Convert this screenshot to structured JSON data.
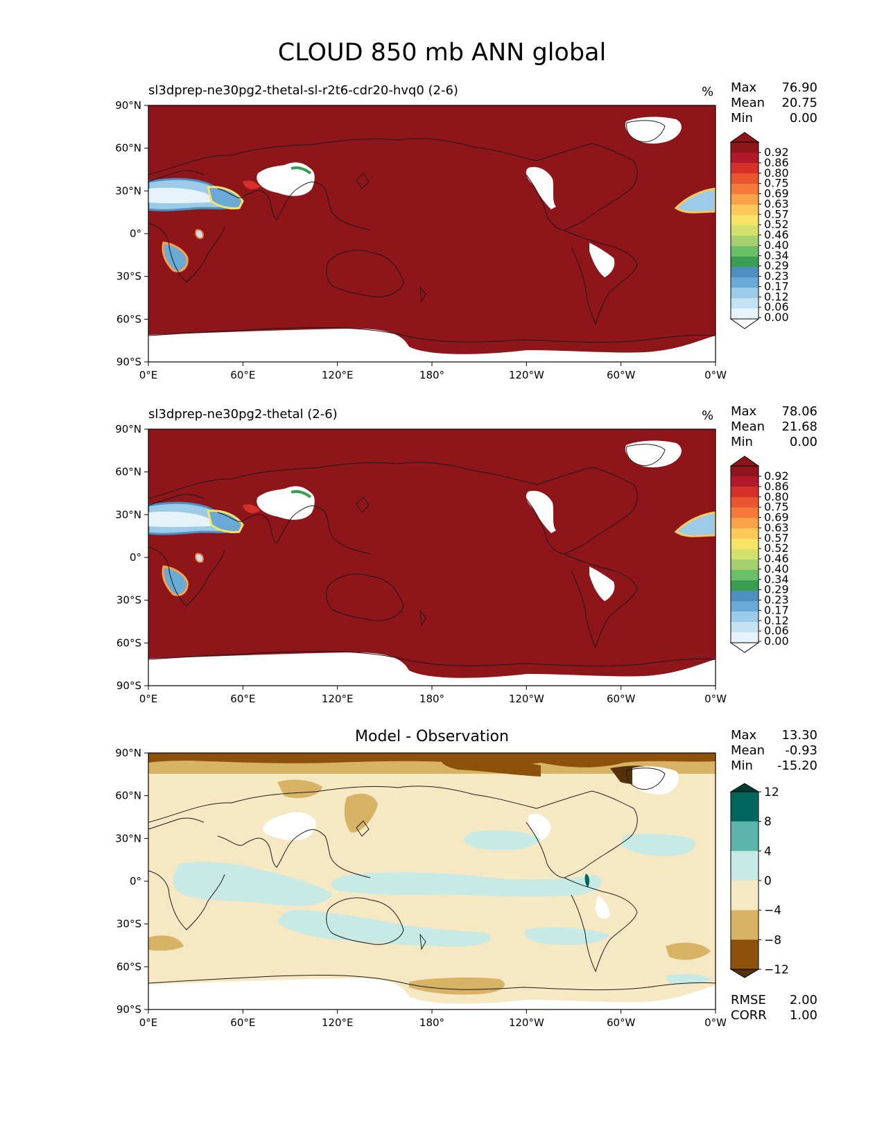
{
  "figure_title": "CLOUD 850 mb ANN global",
  "x_ticks": [
    "0°E",
    "60°E",
    "120°E",
    "180°",
    "120°W",
    "60°W",
    "0°W"
  ],
  "y_ticks": [
    "90°N",
    "60°N",
    "30°N",
    "0°",
    "30°S",
    "60°S",
    "90°S"
  ],
  "panels": [
    {
      "title": "sl3dprep-ne30pg2-thetal-sl-r2t6-cdr20-hvq0 (2-6)",
      "units": "%",
      "stats": {
        "max_label": "Max",
        "max": "76.90",
        "mean_label": "Mean",
        "mean": "20.75",
        "min_label": "Min",
        "min": "0.00"
      },
      "colorbar_levels": [
        "0.92",
        "0.86",
        "0.80",
        "0.75",
        "0.69",
        "0.63",
        "0.57",
        "0.52",
        "0.46",
        "0.40",
        "0.34",
        "0.29",
        "0.23",
        "0.17",
        "0.12",
        "0.06",
        "0.00"
      ],
      "colorbar_colors": [
        "#8e1519",
        "#b2182b",
        "#d6302b",
        "#e8552f",
        "#f4793a",
        "#f9a247",
        "#fcc95a",
        "#f5e266",
        "#d3e06a",
        "#a4d06e",
        "#6bbf66",
        "#3a9e54",
        "#4d8fc0",
        "#6aaad6",
        "#9ccbe8",
        "#c5e2f3",
        "#e6f3fb"
      ]
    },
    {
      "title": "sl3dprep-ne30pg2-thetal (2-6)",
      "units": "%",
      "stats": {
        "max_label": "Max",
        "max": "78.06",
        "mean_label": "Mean",
        "mean": "21.68",
        "min_label": "Min",
        "min": "0.00"
      },
      "colorbar_levels": [
        "0.92",
        "0.86",
        "0.80",
        "0.75",
        "0.69",
        "0.63",
        "0.57",
        "0.52",
        "0.46",
        "0.40",
        "0.34",
        "0.29",
        "0.23",
        "0.17",
        "0.12",
        "0.06",
        "0.00"
      ],
      "colorbar_colors": [
        "#8e1519",
        "#b2182b",
        "#d6302b",
        "#e8552f",
        "#f4793a",
        "#f9a247",
        "#fcc95a",
        "#f5e266",
        "#d3e06a",
        "#a4d06e",
        "#6bbf66",
        "#3a9e54",
        "#4d8fc0",
        "#6aaad6",
        "#9ccbe8",
        "#c5e2f3",
        "#e6f3fb"
      ]
    },
    {
      "title": "Model - Observation",
      "stats": {
        "max_label": "Max",
        "max": "13.30",
        "mean_label": "Mean",
        "mean": "-0.93",
        "min_label": "Min",
        "min": "-15.20"
      },
      "colorbar_levels": [
        "12",
        "8",
        "4",
        "0",
        "−4",
        "−8",
        "−12"
      ],
      "colorbar_colors": [
        "#01665e",
        "#5ab4ac",
        "#c7eae5",
        "#f6e8c3",
        "#d8b365",
        "#8c510a"
      ],
      "extend_colors": {
        "top": "#003c30",
        "bottom": "#543005"
      },
      "metrics": {
        "rmse_label": "RMSE",
        "rmse": "2.00",
        "corr_label": "CORR",
        "corr": "1.00"
      }
    }
  ],
  "colors": {
    "field_dark_red": "#8e1519",
    "missing": "#ffffff",
    "coast": "#1a1a1a"
  }
}
